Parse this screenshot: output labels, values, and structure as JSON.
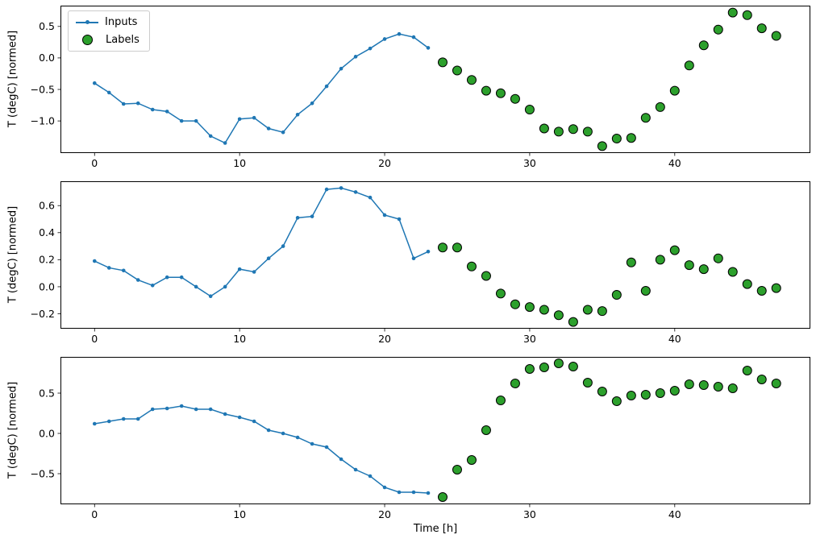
{
  "figure": {
    "background": "#ffffff",
    "xlabel": "Time [h]"
  },
  "legend": {
    "items": [
      {
        "label": "Inputs",
        "marker": "line-with-dot",
        "color": "#1f77b4"
      },
      {
        "label": "Labels",
        "marker": "circle",
        "color": "#2ca02c",
        "edge_color": "#000000"
      }
    ]
  },
  "chart_data": [
    {
      "type": "line",
      "title": "",
      "xlabel": "",
      "ylabel": "T (degC) [normed]",
      "xlim": [
        -2.35,
        49.35
      ],
      "ylim": [
        -1.51,
        0.83
      ],
      "grid": false,
      "legend_position": "upper left",
      "xtick_values": [
        0,
        10,
        20,
        30,
        40
      ],
      "xtick_labels": [
        "0",
        "10",
        "20",
        "30",
        "40"
      ],
      "ytick_values": [
        0.5,
        0.0,
        -0.5,
        -1.0
      ],
      "ytick_labels": [
        "0.5",
        "0.0",
        "−0.5",
        "−1.0"
      ],
      "series": [
        {
          "name": "Inputs",
          "style": "line-marker",
          "color": "#1f77b4",
          "x": [
            0,
            1,
            2,
            3,
            4,
            5,
            6,
            7,
            8,
            9,
            10,
            11,
            12,
            13,
            14,
            15,
            16,
            17,
            18,
            19,
            20,
            21,
            22,
            23
          ],
          "y": [
            -0.4,
            -0.55,
            -0.73,
            -0.72,
            -0.82,
            -0.85,
            -1.0,
            -1.0,
            -1.24,
            -1.35,
            -0.97,
            -0.95,
            -1.12,
            -1.18,
            -0.9,
            -0.72,
            -0.45,
            -0.17,
            0.02,
            0.15,
            0.3,
            0.38,
            0.33,
            0.16
          ]
        },
        {
          "name": "Labels",
          "style": "scatter",
          "color": "#2ca02c",
          "edge_color": "#000000",
          "x": [
            24,
            25,
            26,
            27,
            28,
            29,
            30,
            31,
            32,
            33,
            34,
            35,
            36,
            37,
            38,
            39,
            40,
            41,
            42,
            43,
            44,
            45,
            46,
            47
          ],
          "y": [
            -0.07,
            -0.2,
            -0.35,
            -0.52,
            -0.56,
            -0.65,
            -0.82,
            -1.12,
            -1.17,
            -1.13,
            -1.17,
            -1.4,
            -1.28,
            -1.27,
            -0.95,
            -0.78,
            -0.52,
            -0.12,
            0.2,
            0.45,
            0.72,
            0.68,
            0.47,
            0.35
          ]
        }
      ]
    },
    {
      "type": "line",
      "title": "",
      "xlabel": "",
      "ylabel": "T (degC) [normed]",
      "xlim": [
        -2.35,
        49.35
      ],
      "ylim": [
        -0.31,
        0.78
      ],
      "grid": false,
      "xtick_values": [
        0,
        10,
        20,
        30,
        40
      ],
      "xtick_labels": [
        "0",
        "10",
        "20",
        "30",
        "40"
      ],
      "ytick_values": [
        0.6,
        0.4,
        0.2,
        0.0,
        -0.2
      ],
      "ytick_labels": [
        "0.6",
        "0.4",
        "0.2",
        "0.0",
        "−0.2"
      ],
      "series": [
        {
          "name": "Inputs",
          "style": "line-marker",
          "color": "#1f77b4",
          "x": [
            0,
            1,
            2,
            3,
            4,
            5,
            6,
            7,
            8,
            9,
            10,
            11,
            12,
            13,
            14,
            15,
            16,
            17,
            18,
            19,
            20,
            21,
            22,
            23
          ],
          "y": [
            0.19,
            0.14,
            0.12,
            0.05,
            0.01,
            0.07,
            0.07,
            0.0,
            -0.07,
            0.0,
            0.13,
            0.11,
            0.21,
            0.3,
            0.51,
            0.52,
            0.72,
            0.73,
            0.7,
            0.66,
            0.53,
            0.5,
            0.21,
            0.26
          ]
        },
        {
          "name": "Labels",
          "style": "scatter",
          "color": "#2ca02c",
          "edge_color": "#000000",
          "x": [
            24,
            25,
            26,
            27,
            28,
            29,
            30,
            31,
            32,
            33,
            34,
            35,
            36,
            37,
            38,
            39,
            40,
            41,
            42,
            43,
            44,
            45,
            46,
            47
          ],
          "y": [
            0.29,
            0.29,
            0.15,
            0.08,
            -0.05,
            -0.13,
            -0.15,
            -0.17,
            -0.21,
            -0.26,
            -0.17,
            -0.18,
            -0.06,
            0.18,
            -0.03,
            0.2,
            0.27,
            0.16,
            0.13,
            0.21,
            0.11,
            0.02,
            -0.03,
            -0.01
          ]
        }
      ]
    },
    {
      "type": "line",
      "title": "",
      "xlabel": "Time [h]",
      "ylabel": "T (degC) [normed]",
      "xlim": [
        -2.35,
        49.35
      ],
      "ylim": [
        -0.88,
        0.95
      ],
      "grid": false,
      "xtick_values": [
        0,
        10,
        20,
        30,
        40
      ],
      "xtick_labels": [
        "0",
        "10",
        "20",
        "30",
        "40"
      ],
      "ytick_values": [
        0.5,
        0.0,
        -0.5
      ],
      "ytick_labels": [
        "0.5",
        "0.0",
        "−0.5"
      ],
      "series": [
        {
          "name": "Inputs",
          "style": "line-marker",
          "color": "#1f77b4",
          "x": [
            0,
            1,
            2,
            3,
            4,
            5,
            6,
            7,
            8,
            9,
            10,
            11,
            12,
            13,
            14,
            15,
            16,
            17,
            18,
            19,
            20,
            21,
            22,
            23
          ],
          "y": [
            0.12,
            0.15,
            0.18,
            0.18,
            0.3,
            0.31,
            0.34,
            0.3,
            0.3,
            0.24,
            0.2,
            0.15,
            0.04,
            0.0,
            -0.05,
            -0.13,
            -0.17,
            -0.32,
            -0.45,
            -0.53,
            -0.67,
            -0.73,
            -0.73,
            -0.74
          ]
        },
        {
          "name": "Labels",
          "style": "scatter",
          "color": "#2ca02c",
          "edge_color": "#000000",
          "x": [
            24,
            25,
            26,
            27,
            28,
            29,
            30,
            31,
            32,
            33,
            34,
            35,
            36,
            37,
            38,
            39,
            40,
            41,
            42,
            43,
            44,
            45,
            46,
            47
          ],
          "y": [
            -0.79,
            -0.45,
            -0.33,
            0.04,
            0.41,
            0.62,
            0.8,
            0.82,
            0.87,
            0.83,
            0.63,
            0.52,
            0.4,
            0.47,
            0.48,
            0.5,
            0.53,
            0.61,
            0.6,
            0.58,
            0.56,
            0.78,
            0.67,
            0.62
          ]
        }
      ]
    }
  ]
}
